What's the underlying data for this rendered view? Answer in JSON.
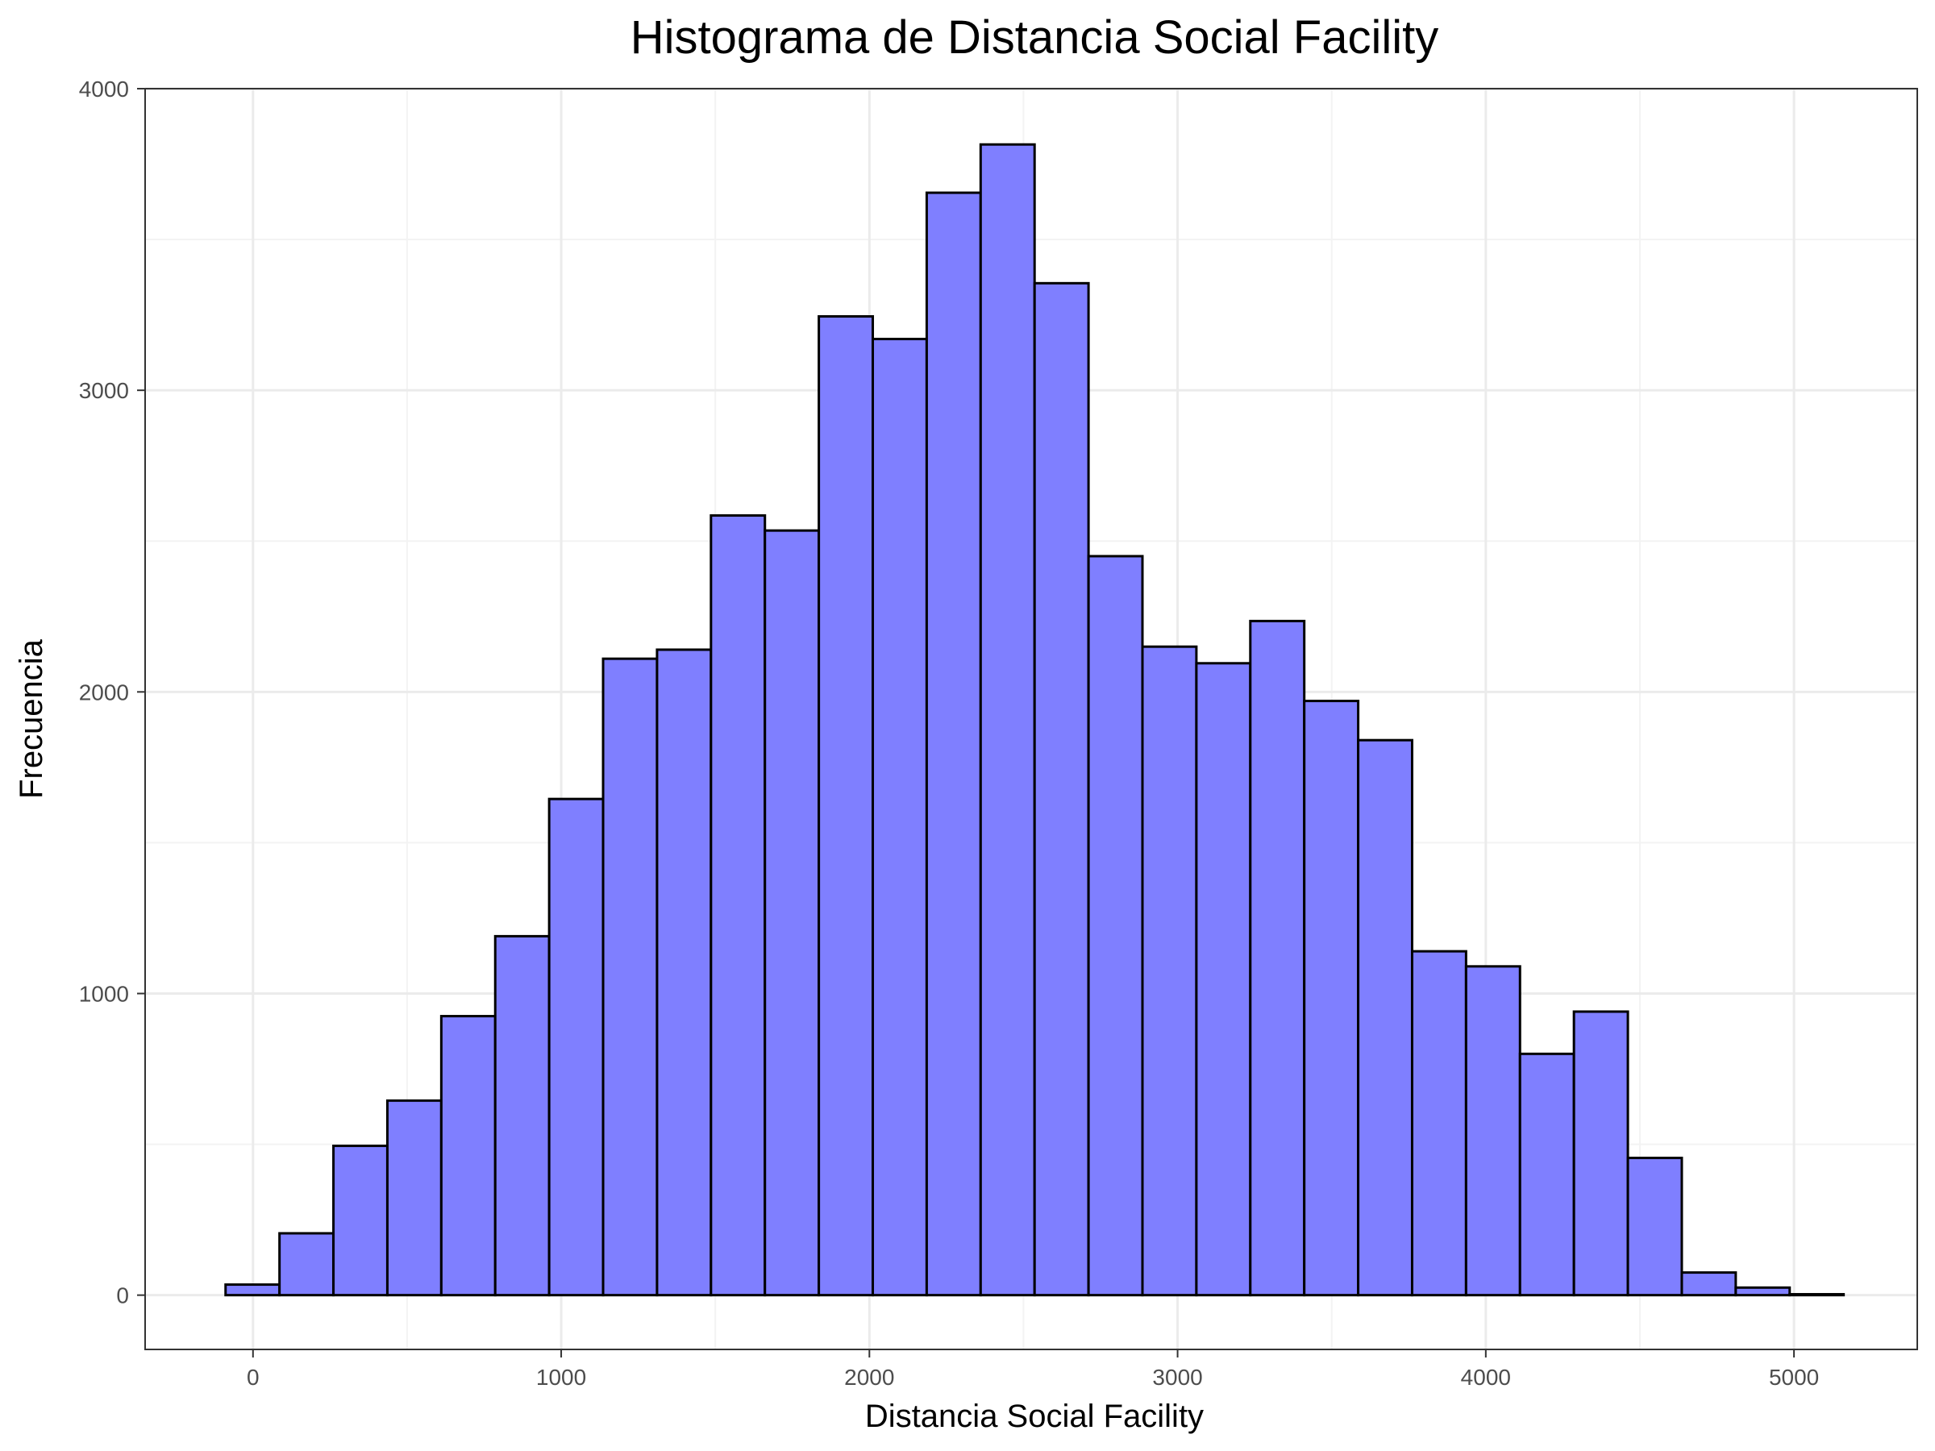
{
  "chart_data": {
    "type": "bar",
    "title": "Histograma de Distancia Social Facility",
    "xlabel": "Distancia Social Facility",
    "ylabel": "Frecuencia",
    "xlim": [
      -350,
      5400
    ],
    "ylim": [
      -180,
      4000
    ],
    "x_ticks": [
      0,
      1000,
      2000,
      3000,
      4000,
      5000
    ],
    "y_ticks": [
      0,
      1000,
      2000,
      3000,
      4000
    ],
    "x_tick_labels": [
      "0",
      "1000",
      "2000",
      "3000",
      "4000",
      "5000"
    ],
    "y_tick_labels": [
      "0",
      "1000",
      "2000",
      "3000",
      "4000"
    ],
    "x_minor_grid": [
      500,
      1500,
      2500,
      3500,
      4500
    ],
    "y_minor_grid": [
      500,
      1500,
      2500,
      3500
    ],
    "grid": true,
    "bin_width": 175,
    "bins": [
      {
        "x0": -89,
        "x1": 86,
        "count": 35
      },
      {
        "x0": 86,
        "x1": 261,
        "count": 205
      },
      {
        "x0": 261,
        "x1": 436,
        "count": 495
      },
      {
        "x0": 436,
        "x1": 611,
        "count": 645
      },
      {
        "x0": 611,
        "x1": 786,
        "count": 925
      },
      {
        "x0": 786,
        "x1": 961,
        "count": 1190
      },
      {
        "x0": 961,
        "x1": 1136,
        "count": 1645
      },
      {
        "x0": 1136,
        "x1": 1311,
        "count": 2110
      },
      {
        "x0": 1311,
        "x1": 1486,
        "count": 2140
      },
      {
        "x0": 1486,
        "x1": 1661,
        "count": 2585
      },
      {
        "x0": 1661,
        "x1": 1836,
        "count": 2535
      },
      {
        "x0": 1836,
        "x1": 2011,
        "count": 3245
      },
      {
        "x0": 2011,
        "x1": 2186,
        "count": 3170
      },
      {
        "x0": 2186,
        "x1": 2361,
        "count": 3655
      },
      {
        "x0": 2361,
        "x1": 2536,
        "count": 3815
      },
      {
        "x0": 2536,
        "x1": 2711,
        "count": 3355
      },
      {
        "x0": 2711,
        "x1": 2886,
        "count": 2450
      },
      {
        "x0": 2886,
        "x1": 3061,
        "count": 2150
      },
      {
        "x0": 3061,
        "x1": 3236,
        "count": 2095
      },
      {
        "x0": 3236,
        "x1": 3411,
        "count": 2235
      },
      {
        "x0": 3411,
        "x1": 3586,
        "count": 1970
      },
      {
        "x0": 3586,
        "x1": 3761,
        "count": 1840
      },
      {
        "x0": 3761,
        "x1": 3936,
        "count": 1140
      },
      {
        "x0": 3936,
        "x1": 4111,
        "count": 1090
      },
      {
        "x0": 4111,
        "x1": 4286,
        "count": 800
      },
      {
        "x0": 4286,
        "x1": 4461,
        "count": 940
      },
      {
        "x0": 4461,
        "x1": 4636,
        "count": 455
      },
      {
        "x0": 4636,
        "x1": 4811,
        "count": 75
      },
      {
        "x0": 4811,
        "x1": 4986,
        "count": 25
      },
      {
        "x0": 4986,
        "x1": 5161,
        "count": 3
      }
    ],
    "colors": {
      "bar_fill": "#7f7fff",
      "bar_stroke": "#000000",
      "grid_major": "#ebebeb",
      "grid_minor": "#f3f3f3",
      "panel_border": "#333333",
      "tick_text": "#4d4d4d"
    }
  }
}
